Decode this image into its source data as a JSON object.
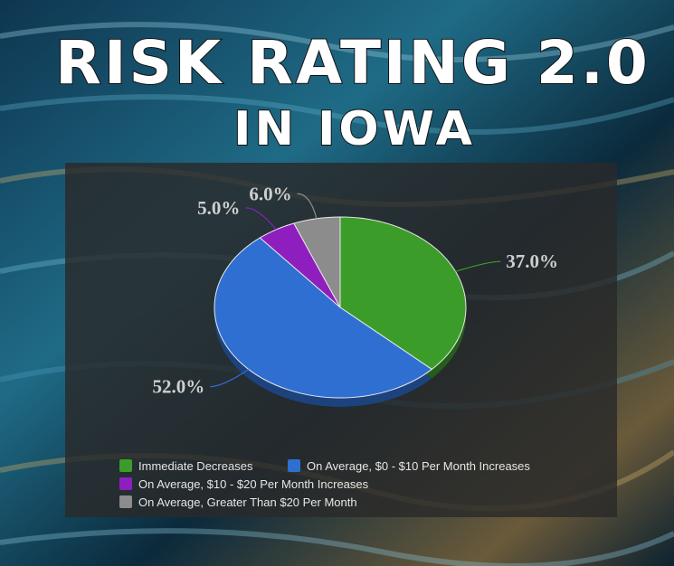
{
  "chart_data": {
    "type": "pie",
    "title": "RISK RATING 2.0",
    "subtitle": "IN IOWA",
    "categories": [
      "Immediate Decreases",
      "On Average, $0 - $10 Per Month Increases",
      "On Average, $10 - $20 Per Month Increases",
      "On Average, Greater Than $20 Per Month"
    ],
    "values": [
      37,
      52,
      5,
      6
    ],
    "value_labels": [
      "37.0%",
      "52.0%",
      "5.0%",
      "6.0%"
    ],
    "colors": [
      "#3c9c2a",
      "#2f6fd2",
      "#8e1fbe",
      "#8c8c8c"
    ]
  }
}
